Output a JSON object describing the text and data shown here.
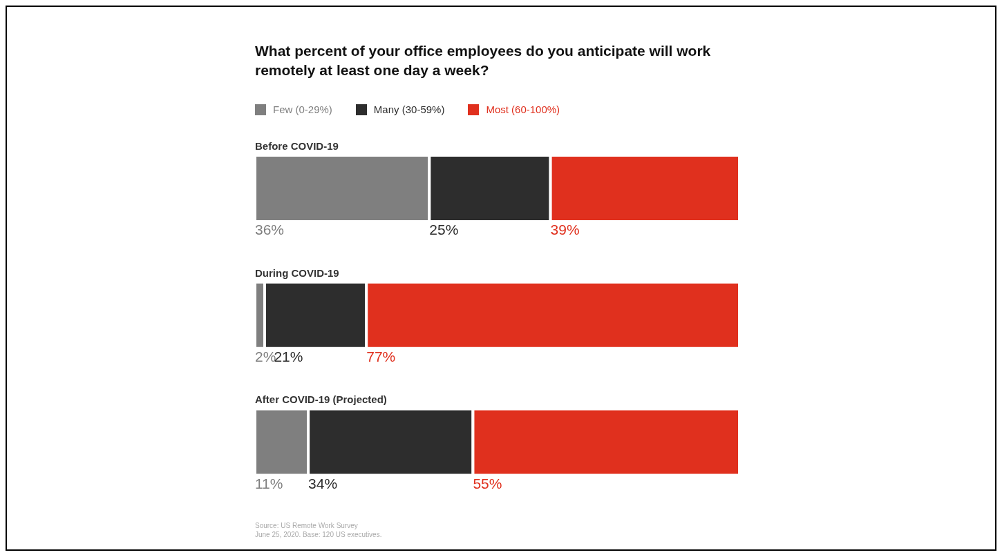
{
  "chart_data": {
    "type": "bar",
    "orientation": "horizontal",
    "stacked": true,
    "title": "What percent of your office employees do you anticipate will work remotely at least one day a week?",
    "categories": [
      "Before COVID-19",
      "During COVID-19",
      "After COVID-19 (Projected)"
    ],
    "series": [
      {
        "name": "Few (0-29%)",
        "color": "#7f7f7f",
        "values": [
          36,
          2,
          11
        ],
        "value_labels": [
          "36%",
          "2%",
          "11%"
        ]
      },
      {
        "name": "Many (30-59%)",
        "color": "#2d2d2d",
        "values": [
          25,
          21,
          34
        ],
        "value_labels": [
          "25%",
          "21%",
          "34%"
        ]
      },
      {
        "name": "Most (60-100%)",
        "color": "#e0301e",
        "values": [
          39,
          77,
          55
        ],
        "value_labels": [
          "39%",
          "77%",
          "55%"
        ]
      }
    ],
    "legend": "top left",
    "tick_labels": "y",
    "grid": false,
    "annotations": [
      "Source: US Remote Work Survey",
      "June 25, 2020. Base: 120 US executives."
    ]
  }
}
